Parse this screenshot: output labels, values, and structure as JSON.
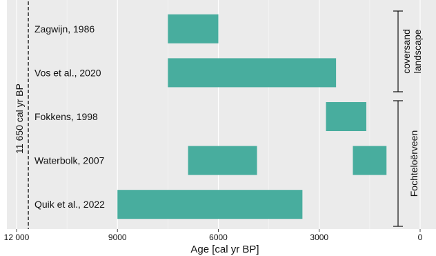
{
  "chart_data": {
    "type": "bar",
    "orientation": "horizontal-range",
    "xlabel": "Age [cal yr BP]",
    "xlim": [
      12000,
      0
    ],
    "xticks": [
      12000,
      9000,
      6000,
      3000,
      0
    ],
    "xtick_labels": [
      "12 000",
      "9000",
      "6000",
      "3000",
      "0"
    ],
    "grid": true,
    "bar_color": "#48ad9e",
    "background_color": "#ebebeb",
    "reference_line": {
      "x": 11650,
      "label": "11 650 cal yr BP",
      "style": "dashed"
    },
    "studies": [
      {
        "label": "Zagwijn, 1986",
        "ranges": [
          [
            7500,
            6000
          ]
        ]
      },
      {
        "label": "Vos et al., 2020",
        "ranges": [
          [
            7500,
            2500
          ]
        ]
      },
      {
        "label": "Fokkens, 1998",
        "ranges": [
          [
            2800,
            1600
          ]
        ]
      },
      {
        "label": "Waterbolk, 2007",
        "ranges": [
          [
            6900,
            4850
          ],
          [
            2000,
            1000
          ]
        ]
      },
      {
        "label": "Quik et al., 2022",
        "ranges": [
          [
            9000,
            3500
          ]
        ]
      }
    ],
    "groups": [
      {
        "label": "coversand landscape",
        "lines": [
          "coversand",
          "landscape"
        ],
        "rows": [
          0,
          1
        ]
      },
      {
        "label": "Fochteloërveen",
        "lines": [
          "Fochteloërveen"
        ],
        "rows": [
          2,
          3,
          4
        ]
      }
    ]
  }
}
